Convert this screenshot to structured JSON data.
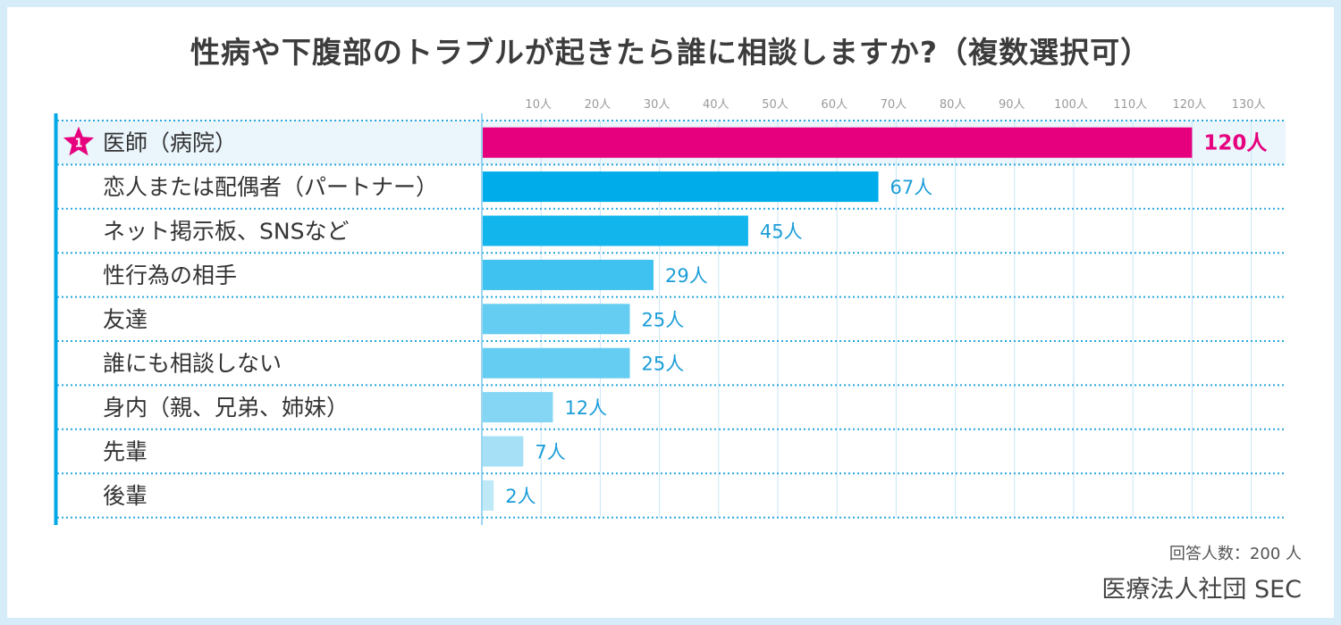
{
  "colors": {
    "frame": "#d6ecf8",
    "accent": "#e6007e",
    "blue_dark": "#00a8e6",
    "highlight_row": "#eaf5fc",
    "grid": "#c9e6f6",
    "dots": "#2aa6dc",
    "value_text": "#1a9dd8"
  },
  "chart_data": {
    "type": "bar",
    "orientation": "horizontal",
    "title": "性病や下腹部のトラブルが起きたら誰に相談しますか?（複数選択可）",
    "categories": [
      "医師（病院）",
      "恋人または配偶者（パートナー）",
      "ネット掲示板、SNSなど",
      "性行為の相手",
      "友達",
      "誰にも相談しない",
      "身内（親、兄弟、姉妹）",
      "先輩",
      "後輩"
    ],
    "values": [
      120,
      67,
      45,
      29,
      25,
      25,
      12,
      7,
      2
    ],
    "value_labels": [
      "120人",
      "67人",
      "45人",
      "29人",
      "25人",
      "25人",
      "12人",
      "7人",
      "2人"
    ],
    "bar_colors": [
      "#e6007e",
      "#00ace9",
      "#12b6ec",
      "#3fc2ef",
      "#66cdf2",
      "#66cdf2",
      "#84d6f4",
      "#a5e0f6",
      "#c0e9f8"
    ],
    "rank_badge": "1",
    "xticks": [
      10,
      20,
      30,
      40,
      50,
      60,
      70,
      80,
      90,
      100,
      110,
      120,
      130
    ],
    "xtick_labels": [
      "10人",
      "20人",
      "30人",
      "40人",
      "50人",
      "60人",
      "70人",
      "80人",
      "90人",
      "100人",
      "110人",
      "120人",
      "130人"
    ],
    "xlim": [
      0,
      136
    ],
    "grid": true
  },
  "footer": {
    "respondents": "回答人数：200 人",
    "source": "医療法人社団 SEC"
  }
}
